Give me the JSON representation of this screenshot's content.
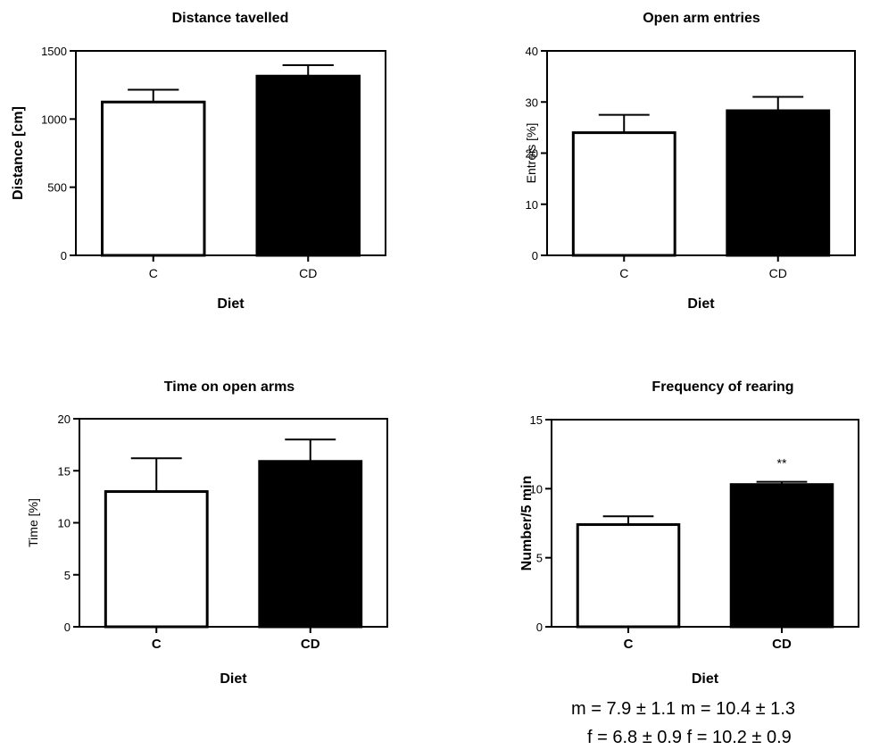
{
  "chart_data": [
    {
      "type": "bar",
      "title": "Distance tavelled",
      "xlabel": "Diet",
      "ylabel": "Distance [cm]",
      "categories": [
        "C",
        "CD"
      ],
      "values": [
        1125,
        1315
      ],
      "errors": [
        90,
        80
      ],
      "bar_colors": [
        "#ffffff",
        "#000000"
      ],
      "ylim": [
        0,
        1500
      ],
      "yticks": [
        0,
        500,
        1000,
        1500
      ],
      "annotations": []
    },
    {
      "type": "bar",
      "title": "Open arm entries",
      "xlabel": "Diet",
      "ylabel": "Entreis [%]",
      "categories": [
        "C",
        "CD"
      ],
      "values": [
        24,
        28.3
      ],
      "errors": [
        3.5,
        2.7
      ],
      "bar_colors": [
        "#ffffff",
        "#000000"
      ],
      "ylim": [
        0,
        40
      ],
      "yticks": [
        0,
        10,
        20,
        30,
        40
      ],
      "annotations": []
    },
    {
      "type": "bar",
      "title": "Time  on open arms",
      "xlabel": "Diet",
      "ylabel": "Time [%]",
      "categories": [
        "C",
        "CD"
      ],
      "values": [
        13,
        15.9
      ],
      "errors": [
        3.2,
        2.1
      ],
      "bar_colors": [
        "#ffffff",
        "#000000"
      ],
      "ylim": [
        0,
        20
      ],
      "yticks": [
        0,
        5,
        10,
        15,
        20
      ],
      "annotations": []
    },
    {
      "type": "bar",
      "title": "Frequency of rearing",
      "xlabel": "Diet",
      "ylabel": "Number/5 min",
      "categories": [
        "C",
        "CD"
      ],
      "values": [
        7.4,
        10.3
      ],
      "errors": [
        0.6,
        0.2
      ],
      "bar_colors": [
        "#ffffff",
        "#000000"
      ],
      "ylim": [
        0,
        15
      ],
      "yticks": [
        0,
        5,
        10,
        15
      ],
      "annotations": [
        {
          "category": "CD",
          "text": "**"
        }
      ]
    }
  ],
  "notes": {
    "row1": "m = 7.9 ± 1.1   m = 10.4 ± 1.3",
    "row2": "f = 6.8 ± 0.9     f = 10.2 ± 0.9"
  }
}
